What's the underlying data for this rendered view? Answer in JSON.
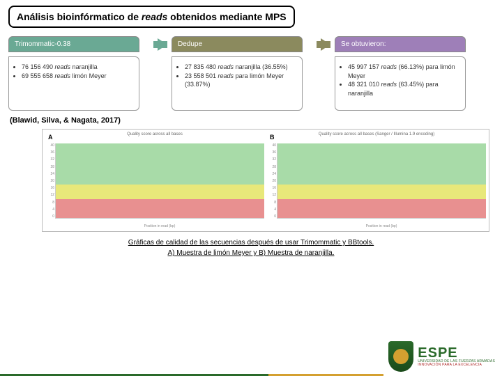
{
  "title_prefix": "Análisis bioinfórmatico de ",
  "title_italic": "reads",
  "title_suffix": " obtenidos mediante MPS",
  "steps": [
    {
      "header": "Trimommatic-0.38",
      "color": "tab-green",
      "items": [
        "76 156 490 <em>reads</em> naranjilla",
        "69 555 658 <em>reads</em> limón Meyer"
      ]
    },
    {
      "header": "Dedupe",
      "color": "tab-olive",
      "items": [
        "27 835 480 <em>reads</em> naranjilla (36.55%)",
        "23 558 501 <em>reads</em> para limón Meyer (33.87%)"
      ]
    },
    {
      "header": "Se obtuvieron:",
      "color": "tab-purple",
      "items": [
        "45 997 157 <em>reads</em> (66.13%) para limón Meyer",
        "48 321 010 <em>reads</em> (63.45%) para naranjilla"
      ]
    }
  ],
  "arrows": [
    "arrow-green",
    "arrow-olive"
  ],
  "citation": "(Blawid, Silva, & Nagata, 2017)",
  "chart": {
    "ylim": [
      0,
      40
    ],
    "yticks": [
      40,
      36,
      32,
      28,
      24,
      20,
      16,
      12,
      8,
      4,
      0
    ],
    "panels": [
      {
        "label": "A",
        "title": "Quality score across all bases",
        "bars_green": 0.55,
        "bars_yellow": 0.2,
        "bars_red": 0.25,
        "n_bars": 48
      },
      {
        "label": "B",
        "title": "Quality score across all bases (Sanger / Illumina 1.9 encoding)",
        "bars_green": 0.55,
        "bars_yellow": 0.2,
        "bars_red": 0.25,
        "n_bars": 48
      }
    ],
    "xlabel": "Position in read (bp)",
    "colors": {
      "green": "#a8dba8",
      "yellow": "#e8e87a",
      "red": "#e89090",
      "grid": "#e0e0e0"
    }
  },
  "caption_line1": "Gráficas de calidad de las secuencias después de usar Trimommatic y BBtools.",
  "caption_line2": "A) Muestra de limón Meyer y B) Muestra de naranjilla.",
  "logo": {
    "name": "ESPE",
    "sub1": "UNIVERSIDAD DE LAS FUERZAS ARMADAS",
    "sub2": "INNOVACIÓN PARA LA EXCELENCIA"
  }
}
